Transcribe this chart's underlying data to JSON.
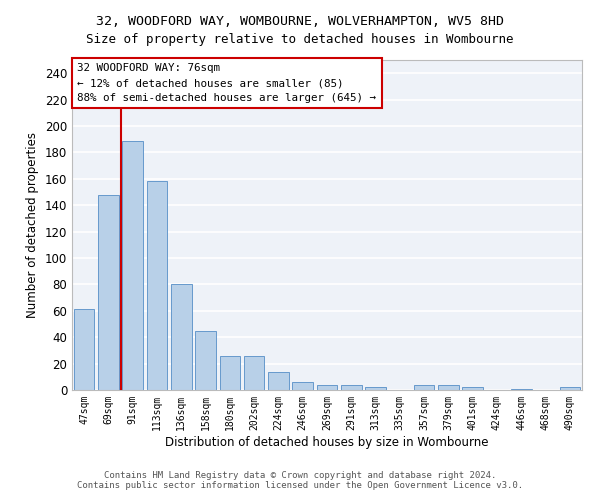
{
  "title": "32, WOODFORD WAY, WOMBOURNE, WOLVERHAMPTON, WV5 8HD",
  "subtitle": "Size of property relative to detached houses in Wombourne",
  "xlabel": "Distribution of detached houses by size in Wombourne",
  "ylabel": "Number of detached properties",
  "bar_color": "#b8d0e8",
  "bar_edge_color": "#6699cc",
  "background_color": "#eef2f8",
  "grid_color": "#ffffff",
  "categories": [
    "47sqm",
    "69sqm",
    "91sqm",
    "113sqm",
    "136sqm",
    "158sqm",
    "180sqm",
    "202sqm",
    "224sqm",
    "246sqm",
    "269sqm",
    "291sqm",
    "313sqm",
    "335sqm",
    "357sqm",
    "379sqm",
    "401sqm",
    "424sqm",
    "446sqm",
    "468sqm",
    "490sqm"
  ],
  "values": [
    61,
    148,
    189,
    158,
    80,
    45,
    26,
    26,
    14,
    6,
    4,
    4,
    2,
    0,
    4,
    4,
    2,
    0,
    1,
    0,
    2
  ],
  "ylim": [
    0,
    250
  ],
  "yticks": [
    0,
    20,
    40,
    60,
    80,
    100,
    120,
    140,
    160,
    180,
    200,
    220,
    240
  ],
  "vline_x": 1.5,
  "vline_color": "#cc0000",
  "annotation_text": "32 WOODFORD WAY: 76sqm\n← 12% of detached houses are smaller (85)\n88% of semi-detached houses are larger (645) →",
  "annotation_box_color": "#cc0000",
  "title_fontsize": 9.5,
  "subtitle_fontsize": 9,
  "footer_line1": "Contains HM Land Registry data © Crown copyright and database right 2024.",
  "footer_line2": "Contains public sector information licensed under the Open Government Licence v3.0."
}
